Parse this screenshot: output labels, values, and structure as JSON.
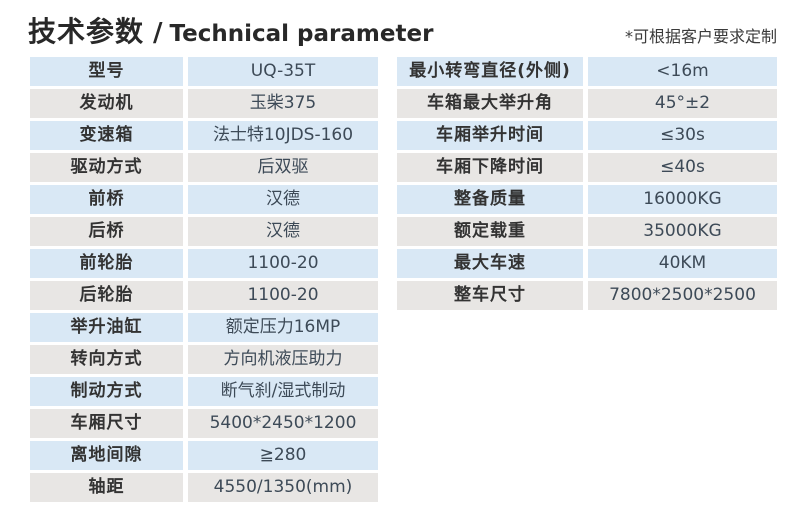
{
  "header": {
    "title_zh": "技术参数",
    "title_sep": "/",
    "title_en": "Technical parameter",
    "note": "*可根据客户要求定制"
  },
  "colors": {
    "row_blue": "#d9e8f5",
    "row_gray": "#e8e6e4",
    "label_text": "#333333",
    "value_text": "#3d4a57",
    "title_text": "#282828"
  },
  "left_table": {
    "rows": [
      {
        "label": "型号",
        "value": "UQ-35T"
      },
      {
        "label": "发动机",
        "value": "玉柴375"
      },
      {
        "label": "变速箱",
        "value": "法士特10JDS-160"
      },
      {
        "label": "驱动方式",
        "value": "后双驱"
      },
      {
        "label": "前桥",
        "value": "汉德"
      },
      {
        "label": "后桥",
        "value": "汉德"
      },
      {
        "label": "前轮胎",
        "value": "1100-20"
      },
      {
        "label": "后轮胎",
        "value": "1100-20"
      },
      {
        "label": "举升油缸",
        "value": "额定压力16MP"
      },
      {
        "label": "转向方式",
        "value": "方向机液压助力"
      },
      {
        "label": "制动方式",
        "value": "断气刹/湿式制动"
      },
      {
        "label": "车厢尺寸",
        "value": "5400*2450*1200"
      },
      {
        "label": "离地间隙",
        "value": "≧280"
      },
      {
        "label": "轴距",
        "value": "4550/1350(mm)"
      }
    ]
  },
  "right_table": {
    "rows": [
      {
        "label": "最小转弯直径(外侧)",
        "value": "<16m"
      },
      {
        "label": "车箱最大举升角",
        "value": "45°±2"
      },
      {
        "label": "车厢举升时间",
        "value": "≤30s"
      },
      {
        "label": "车厢下降时间",
        "value": "≤40s"
      },
      {
        "label": "整备质量",
        "value": "16000KG"
      },
      {
        "label": "额定载重",
        "value": "35000KG"
      },
      {
        "label": "最大车速",
        "value": "40KM"
      },
      {
        "label": "整车尺寸",
        "value": "7800*2500*2500"
      }
    ]
  }
}
